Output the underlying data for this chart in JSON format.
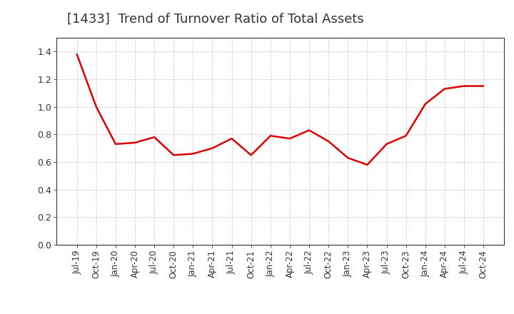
{
  "title": "[1433]  Trend of Turnover Ratio of Total Assets",
  "title_fontsize": 13,
  "title_color": "#333333",
  "line_color": "#dd0000",
  "line_width": 1.8,
  "background_color": "#ffffff",
  "grid_color": "#aaaaaa",
  "ylim": [
    0.0,
    1.5
  ],
  "yticks": [
    0.0,
    0.2,
    0.4,
    0.6,
    0.8,
    1.0,
    1.2,
    1.4
  ],
  "x_labels": [
    "Jul-19",
    "Oct-19",
    "Jan-20",
    "Apr-20",
    "Jul-20",
    "Oct-20",
    "Jan-21",
    "Apr-21",
    "Jul-21",
    "Oct-21",
    "Jan-22",
    "Apr-22",
    "Jul-22",
    "Oct-22",
    "Jan-23",
    "Apr-23",
    "Jul-23",
    "Oct-23",
    "Jan-24",
    "Apr-24",
    "Jul-24",
    "Oct-24"
  ],
  "y_values": [
    1.38,
    1.0,
    0.73,
    0.74,
    0.78,
    0.65,
    0.66,
    0.7,
    0.77,
    0.65,
    0.79,
    0.77,
    0.83,
    0.75,
    0.63,
    0.58,
    0.73,
    0.79,
    1.02,
    1.13,
    1.15,
    1.15
  ],
  "tick_fontsize": 8.5,
  "ytick_fontsize": 9
}
